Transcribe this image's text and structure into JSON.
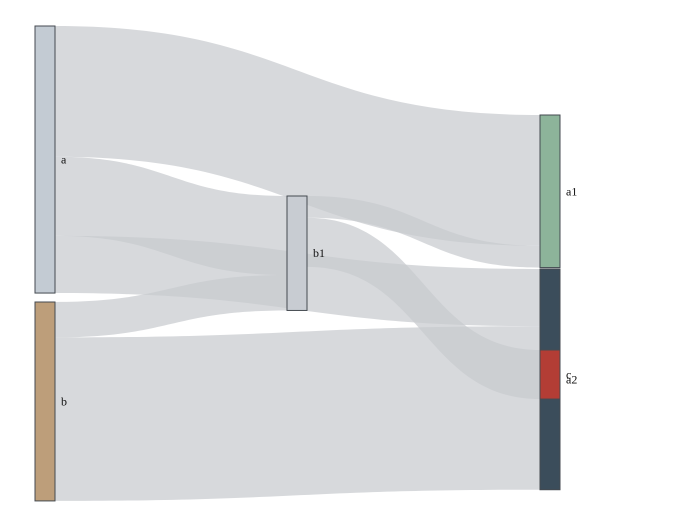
{
  "chart_data": {
    "type": "sankey",
    "nodes": [
      {
        "id": "a",
        "label": "a",
        "color": "#c3cbd3"
      },
      {
        "id": "b",
        "label": "b",
        "color": "#bd9e7a"
      },
      {
        "id": "b1",
        "label": "b1",
        "color": "#c8ccd2"
      },
      {
        "id": "a1",
        "label": "a1",
        "color": "#8db49a"
      },
      {
        "id": "a2",
        "label": "a2",
        "color": "#3b4d5b"
      },
      {
        "id": "c",
        "label": "c",
        "color": "#b33d35"
      }
    ],
    "links": [
      {
        "source": "a",
        "target": "a1",
        "value": 2.4
      },
      {
        "source": "a",
        "target": "b1",
        "value": 1.45
      },
      {
        "source": "a",
        "target": "a2",
        "value": 1.05
      },
      {
        "source": "b",
        "target": "b1",
        "value": 0.65
      },
      {
        "source": "b",
        "target": "a2",
        "value": 3.0
      },
      {
        "source": "b1",
        "target": "a1",
        "value": 0.4
      },
      {
        "source": "b1",
        "target": "c",
        "value": 0.9
      }
    ]
  }
}
